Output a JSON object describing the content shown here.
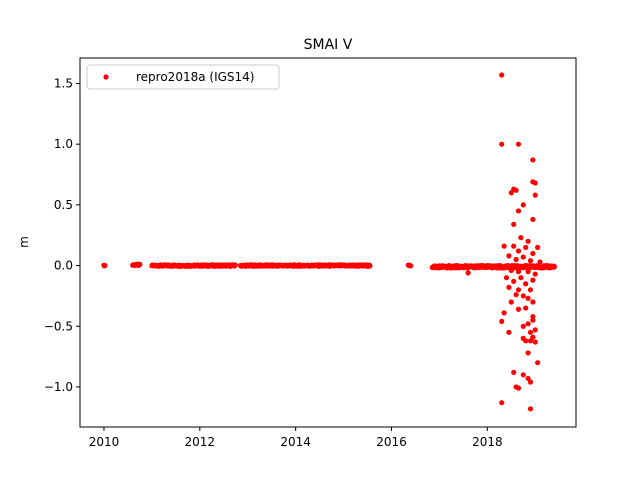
{
  "chart_data": {
    "type": "scatter",
    "title": "SMAI V",
    "xlabel": "",
    "ylabel": "m",
    "xlim": [
      2009.5,
      2019.85
    ],
    "ylim": [
      -1.33,
      1.71
    ],
    "xticks": [
      2010,
      2012,
      2014,
      2016,
      2018
    ],
    "xtick_labels": [
      "2010",
      "2012",
      "2014",
      "2016",
      "2018"
    ],
    "yticks": [
      -1.0,
      -0.5,
      0.0,
      0.5,
      1.0,
      1.5
    ],
    "ytick_labels": [
      "−1.0",
      "−0.5",
      "0.0",
      "0.5",
      "1.0",
      "1.5"
    ],
    "grid": false,
    "legend_position": "top-left",
    "series": [
      {
        "name": "repro2018a (IGS14)",
        "color": "#ff0000",
        "segments": [
          {
            "x_start": 2010.0,
            "x_end": 2010.02,
            "step": 0.01,
            "y": 0.0,
            "jitter": 0.003
          },
          {
            "x_start": 2010.6,
            "x_end": 2010.75,
            "step": 0.015,
            "y": 0.005,
            "jitter": 0.006
          },
          {
            "x_start": 2011.0,
            "x_end": 2012.75,
            "step": 0.012,
            "y": 0.0,
            "jitter": 0.006
          },
          {
            "x_start": 2012.85,
            "x_end": 2015.55,
            "step": 0.012,
            "y": 0.0,
            "jitter": 0.006
          },
          {
            "x_start": 2016.35,
            "x_end": 2016.4,
            "step": 0.01,
            "y": 0.0,
            "jitter": 0.004
          },
          {
            "x_start": 2016.85,
            "x_end": 2019.4,
            "step": 0.01,
            "y": -0.01,
            "jitter": 0.01
          }
        ],
        "points": [
          [
            2018.3,
            1.57
          ],
          [
            2018.3,
            1.0
          ],
          [
            2018.65,
            1.0
          ],
          [
            2018.95,
            0.87
          ],
          [
            2018.95,
            0.69
          ],
          [
            2019.0,
            0.68
          ],
          [
            2018.55,
            0.63
          ],
          [
            2018.6,
            0.62
          ],
          [
            2018.5,
            0.6
          ],
          [
            2019.0,
            0.58
          ],
          [
            2018.75,
            0.5
          ],
          [
            2018.65,
            0.45
          ],
          [
            2018.95,
            0.38
          ],
          [
            2018.55,
            0.34
          ],
          [
            2018.7,
            0.23
          ],
          [
            2018.85,
            0.2
          ],
          [
            2018.35,
            0.16
          ],
          [
            2018.55,
            0.16
          ],
          [
            2018.8,
            0.15
          ],
          [
            2019.05,
            0.15
          ],
          [
            2018.65,
            0.12
          ],
          [
            2018.95,
            0.1
          ],
          [
            2018.45,
            0.08
          ],
          [
            2018.75,
            0.07
          ],
          [
            2018.6,
            0.05
          ],
          [
            2018.9,
            0.04
          ],
          [
            2019.1,
            0.03
          ],
          [
            2018.5,
            -0.04
          ],
          [
            2018.65,
            -0.05
          ],
          [
            2018.85,
            -0.05
          ],
          [
            2019.0,
            -0.07
          ],
          [
            2017.6,
            -0.06
          ],
          [
            2018.4,
            -0.1
          ],
          [
            2018.7,
            -0.1
          ],
          [
            2018.95,
            -0.12
          ],
          [
            2018.55,
            -0.13
          ],
          [
            2018.8,
            -0.15
          ],
          [
            2018.45,
            -0.18
          ],
          [
            2018.65,
            -0.2
          ],
          [
            2018.9,
            -0.2
          ],
          [
            2018.6,
            -0.24
          ],
          [
            2018.75,
            -0.25
          ],
          [
            2018.85,
            -0.27
          ],
          [
            2018.5,
            -0.3
          ],
          [
            2018.95,
            -0.3
          ],
          [
            2018.8,
            -0.35
          ],
          [
            2018.65,
            -0.36
          ],
          [
            2018.35,
            -0.39
          ],
          [
            2018.95,
            -0.42
          ],
          [
            2018.95,
            -0.45
          ],
          [
            2018.3,
            -0.46
          ],
          [
            2018.85,
            -0.48
          ],
          [
            2018.75,
            -0.5
          ],
          [
            2019.0,
            -0.53
          ],
          [
            2018.45,
            -0.55
          ],
          [
            2018.9,
            -0.55
          ],
          [
            2018.95,
            -0.59
          ],
          [
            2018.75,
            -0.6
          ],
          [
            2018.8,
            -0.62
          ],
          [
            2018.9,
            -0.62
          ],
          [
            2019.0,
            -0.63
          ],
          [
            2018.85,
            -0.72
          ],
          [
            2019.05,
            -0.8
          ],
          [
            2018.55,
            -0.88
          ],
          [
            2018.75,
            -0.9
          ],
          [
            2018.85,
            -0.93
          ],
          [
            2018.9,
            -0.96
          ],
          [
            2018.6,
            -1.0
          ],
          [
            2018.65,
            -1.01
          ],
          [
            2018.3,
            -1.13
          ],
          [
            2018.9,
            -1.18
          ]
        ]
      }
    ]
  }
}
